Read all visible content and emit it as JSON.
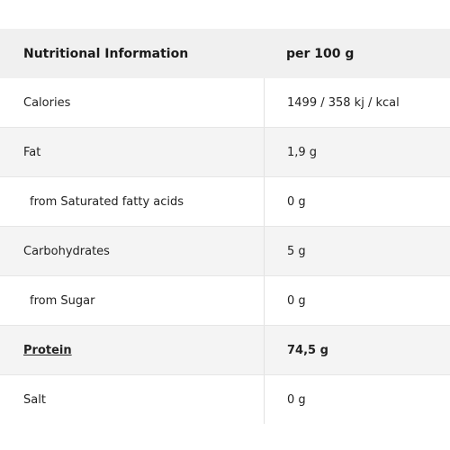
{
  "table": {
    "header": {
      "name": "Nutritional Information",
      "value": "per 100 g"
    },
    "rows": [
      {
        "name": "Calories",
        "value": "1499 / 358 kj / kcal"
      },
      {
        "name": "Fat",
        "value": "1,9 g"
      },
      {
        "name": "from Saturated fatty acids",
        "value": "0 g"
      },
      {
        "name": "Carbohydrates",
        "value": "5 g"
      },
      {
        "name": "from Sugar",
        "value": "0 g"
      },
      {
        "name": "Protein",
        "value": "74,5 g"
      },
      {
        "name": "Salt",
        "value": "0 g"
      }
    ]
  }
}
